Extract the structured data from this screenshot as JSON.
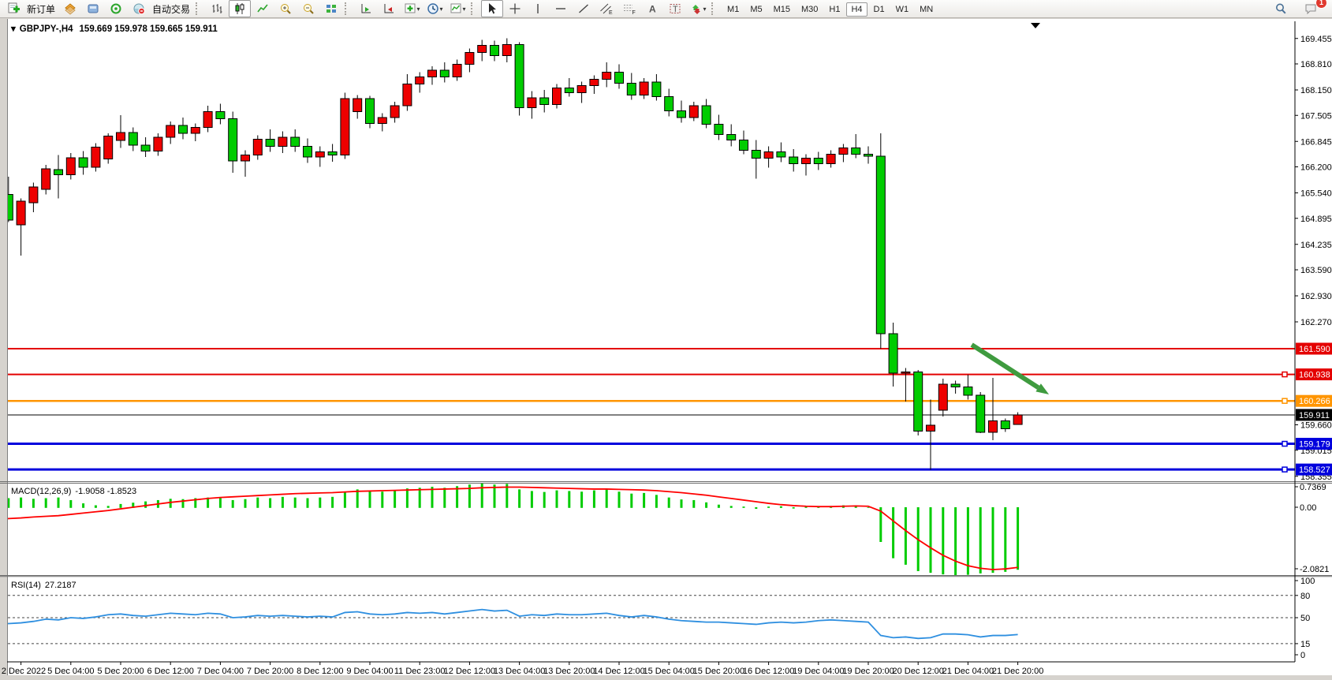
{
  "toolbar": {
    "new_order_label": "新订单",
    "auto_trading_label": "自动交易",
    "timeframes": [
      "M1",
      "M5",
      "M15",
      "M30",
      "H1",
      "H4",
      "D1",
      "W1",
      "MN"
    ],
    "active_timeframe": "H4",
    "notification_badge": "1"
  },
  "icons": {
    "dropdown_caret": "▾",
    "shift_marker": "▼"
  },
  "chart_header": {
    "symbol_title": "GBPJPY-,H4",
    "ohlc_line": "159.669 159.978 159.665 159.911"
  },
  "indicators": {
    "macd_label": "MACD(12,26,9)",
    "macd_values": "-1.9058 -1.8523",
    "rsi_label": "RSI(14)",
    "rsi_value": "27.2187"
  },
  "axes": {
    "price_ticks": [
      169.455,
      168.81,
      168.15,
      167.505,
      166.845,
      166.2,
      165.54,
      164.895,
      164.235,
      163.59,
      162.93,
      162.27,
      159.66,
      159.015,
      158.355
    ],
    "macd_ticks": [
      "0.7369",
      "0.00",
      "-2.0821"
    ],
    "rsi_ticks": [
      "100",
      "80",
      "50",
      "15",
      "0"
    ],
    "time_labels": [
      "2 Dec 2022",
      "5 Dec 04:00",
      "5 Dec 20:00",
      "6 Dec 12:00",
      "7 Dec 04:00",
      "7 Dec 20:00",
      "8 Dec 12:00",
      "9 Dec 04:00",
      "11 Dec 23:00",
      "12 Dec 12:00",
      "13 Dec 04:00",
      "13 Dec 20:00",
      "14 Dec 12:00",
      "15 Dec 04:00",
      "15 Dec 20:00",
      "16 Dec 12:00",
      "19 Dec 04:00",
      "19 Dec 20:00",
      "20 Dec 12:00",
      "21 Dec 04:00",
      "21 Dec 20:00"
    ]
  },
  "chart_data": {
    "type": "candlestick",
    "symbol": "GBPJPY-",
    "timeframe": "H4",
    "title": "GBPJPY-,H4 159.669 159.978 159.665 159.911",
    "bull_color": "#EE0000",
    "bear_color": "#00CC00",
    "candles": [
      [
        164.8,
        165.6,
        164.7,
        165.5
      ],
      [
        165.5,
        165.95,
        164.8,
        164.85
      ],
      [
        164.73,
        165.4,
        163.95,
        165.33
      ],
      [
        165.29,
        165.8,
        165.05,
        165.69
      ],
      [
        165.63,
        166.25,
        165.5,
        166.15
      ],
      [
        166.13,
        166.5,
        165.4,
        166.0
      ],
      [
        166.0,
        166.55,
        165.88,
        166.43
      ],
      [
        166.43,
        166.6,
        166.0,
        166.19
      ],
      [
        166.19,
        166.8,
        166.08,
        166.7
      ],
      [
        166.4,
        167.05,
        166.28,
        166.98
      ],
      [
        166.87,
        167.51,
        166.68,
        167.07
      ],
      [
        167.07,
        167.2,
        166.6,
        166.75
      ],
      [
        166.75,
        166.95,
        166.45,
        166.6
      ],
      [
        166.6,
        167.05,
        166.48,
        166.95
      ],
      [
        166.95,
        167.35,
        166.78,
        167.25
      ],
      [
        167.25,
        167.45,
        166.9,
        167.05
      ],
      [
        167.05,
        167.3,
        166.85,
        167.2
      ],
      [
        167.2,
        167.75,
        167.08,
        167.6
      ],
      [
        167.6,
        167.8,
        167.28,
        167.42
      ],
      [
        167.42,
        167.6,
        166.05,
        166.35
      ],
      [
        166.35,
        166.62,
        165.95,
        166.5
      ],
      [
        166.5,
        167.0,
        166.38,
        166.9
      ],
      [
        166.9,
        167.15,
        166.58,
        166.72
      ],
      [
        166.72,
        167.1,
        166.55,
        166.95
      ],
      [
        166.95,
        167.15,
        166.58,
        166.72
      ],
      [
        166.72,
        166.92,
        166.3,
        166.45
      ],
      [
        166.45,
        166.72,
        166.2,
        166.58
      ],
      [
        166.58,
        166.78,
        166.33,
        166.5
      ],
      [
        166.5,
        168.08,
        166.4,
        167.93
      ],
      [
        167.6,
        168.02,
        167.42,
        167.93
      ],
      [
        167.93,
        168.0,
        167.18,
        167.3
      ],
      [
        167.3,
        167.56,
        167.1,
        167.45
      ],
      [
        167.45,
        167.85,
        167.32,
        167.75
      ],
      [
        167.75,
        168.55,
        167.62,
        168.3
      ],
      [
        168.3,
        168.6,
        168.08,
        168.48
      ],
      [
        168.48,
        168.75,
        168.28,
        168.65
      ],
      [
        168.65,
        168.85,
        168.34,
        168.48
      ],
      [
        168.48,
        168.92,
        168.38,
        168.8
      ],
      [
        168.8,
        169.2,
        168.6,
        169.1
      ],
      [
        169.1,
        169.42,
        168.88,
        169.28
      ],
      [
        169.28,
        169.4,
        168.88,
        169.02
      ],
      [
        169.02,
        169.46,
        168.85,
        169.3
      ],
      [
        169.3,
        169.36,
        167.5,
        167.7
      ],
      [
        167.7,
        168.12,
        167.42,
        167.95
      ],
      [
        167.95,
        168.15,
        167.58,
        167.78
      ],
      [
        167.78,
        168.3,
        167.68,
        168.2
      ],
      [
        168.2,
        168.45,
        167.98,
        168.08
      ],
      [
        168.08,
        168.36,
        167.82,
        168.26
      ],
      [
        168.26,
        168.52,
        168.05,
        168.42
      ],
      [
        168.42,
        168.85,
        168.22,
        168.6
      ],
      [
        168.6,
        168.8,
        168.18,
        168.32
      ],
      [
        168.32,
        168.58,
        167.9,
        168.02
      ],
      [
        168.02,
        168.45,
        167.92,
        168.35
      ],
      [
        168.35,
        168.55,
        167.88,
        167.98
      ],
      [
        167.98,
        168.18,
        167.48,
        167.62
      ],
      [
        167.62,
        167.88,
        167.32,
        167.45
      ],
      [
        167.45,
        167.85,
        167.36,
        167.75
      ],
      [
        167.75,
        167.92,
        167.18,
        167.28
      ],
      [
        167.28,
        167.52,
        166.88,
        167.02
      ],
      [
        167.02,
        167.28,
        166.72,
        166.88
      ],
      [
        166.88,
        167.12,
        166.52,
        166.62
      ],
      [
        166.62,
        166.88,
        165.9,
        166.42
      ],
      [
        166.42,
        166.72,
        166.18,
        166.58
      ],
      [
        166.58,
        166.82,
        166.32,
        166.45
      ],
      [
        166.45,
        166.65,
        166.08,
        166.28
      ],
      [
        166.28,
        166.52,
        165.98,
        166.42
      ],
      [
        166.42,
        166.58,
        166.12,
        166.28
      ],
      [
        166.28,
        166.62,
        166.18,
        166.52
      ],
      [
        166.52,
        166.78,
        166.32,
        166.68
      ],
      [
        166.68,
        167.03,
        166.42,
        166.52
      ],
      [
        166.52,
        166.72,
        166.28,
        166.47
      ],
      [
        166.47,
        167.05,
        161.59,
        161.97
      ],
      [
        161.97,
        162.25,
        160.63,
        160.97
      ],
      [
        160.97,
        161.1,
        160.25,
        161.0
      ],
      [
        161.0,
        161.05,
        159.39,
        159.5
      ],
      [
        159.5,
        160.3,
        158.52,
        159.65
      ],
      [
        160.03,
        160.83,
        159.87,
        160.69
      ],
      [
        160.69,
        160.78,
        160.45,
        160.62
      ],
      [
        160.62,
        160.93,
        160.3,
        160.41
      ],
      [
        160.41,
        160.49,
        159.45,
        159.47
      ],
      [
        159.47,
        160.85,
        159.27,
        159.76
      ],
      [
        159.76,
        159.82,
        159.48,
        159.56
      ],
      [
        159.669,
        159.978,
        159.665,
        159.911
      ]
    ],
    "price_lines": [
      {
        "price": "161.590",
        "color": "#E40000",
        "width": 2,
        "handle": false
      },
      {
        "price": "160.938",
        "color": "#E40000",
        "width": 2,
        "handle": true
      },
      {
        "price": "160.266",
        "color": "#FF9500",
        "width": 2.5,
        "handle": true
      },
      {
        "price": "159.911",
        "color": "#000000",
        "width": 1,
        "handle": false
      },
      {
        "price": "159.179",
        "color": "#0000DD",
        "width": 3,
        "handle": true
      },
      {
        "price": "158.527",
        "color": "#0000DD",
        "width": 3,
        "handle": true
      }
    ],
    "annotation_arrow": {
      "from_bar": 78.3,
      "from_price": 161.69,
      "to_bar": 84.5,
      "to_price": 160.43,
      "color": "#3F9B3F"
    },
    "macd": {
      "params": "12,26,9",
      "main": -1.9058,
      "signal_now": -1.8523,
      "range": [
        -2.0821,
        0.7369
      ],
      "hist": [
        0.25,
        0.28,
        0.3,
        0.26,
        0.28,
        0.3,
        0.22,
        0.12,
        0.06,
        0.04,
        0.1,
        0.14,
        0.18,
        0.22,
        0.26,
        0.25,
        0.28,
        0.3,
        0.28,
        0.22,
        0.25,
        0.3,
        0.28,
        0.32,
        0.3,
        0.28,
        0.3,
        0.32,
        0.48,
        0.55,
        0.5,
        0.48,
        0.52,
        0.58,
        0.6,
        0.63,
        0.6,
        0.65,
        0.7,
        0.7369,
        0.7,
        0.72,
        0.55,
        0.5,
        0.47,
        0.52,
        0.5,
        0.48,
        0.52,
        0.55,
        0.48,
        0.42,
        0.44,
        0.38,
        0.3,
        0.24,
        0.22,
        0.15,
        0.08,
        0.04,
        0.02,
        -0.03,
        0.02,
        0.03,
        -0.02,
        0.02,
        0.01,
        0.04,
        0.06,
        0.05,
        0.0,
        -1.05,
        -1.55,
        -1.75,
        -1.95,
        -2.0,
        -2.05,
        -2.0821,
        -2.06,
        -2.02,
        -2.0,
        -1.97,
        -1.9058
      ],
      "signal": [
        -0.37,
        -0.35,
        -0.33,
        -0.3,
        -0.28,
        -0.26,
        -0.22,
        -0.18,
        -0.14,
        -0.1,
        -0.05,
        0.0,
        0.05,
        0.1,
        0.15,
        0.19,
        0.23,
        0.27,
        0.3,
        0.32,
        0.34,
        0.36,
        0.38,
        0.4,
        0.42,
        0.43,
        0.44,
        0.45,
        0.47,
        0.49,
        0.5,
        0.51,
        0.52,
        0.53,
        0.54,
        0.55,
        0.56,
        0.57,
        0.58,
        0.6,
        0.61,
        0.62,
        0.62,
        0.61,
        0.6,
        0.59,
        0.58,
        0.57,
        0.56,
        0.56,
        0.55,
        0.54,
        0.53,
        0.51,
        0.48,
        0.45,
        0.41,
        0.37,
        0.32,
        0.27,
        0.22,
        0.17,
        0.12,
        0.08,
        0.05,
        0.03,
        0.02,
        0.02,
        0.03,
        0.04,
        0.03,
        -0.12,
        -0.42,
        -0.72,
        -1.0,
        -1.25,
        -1.48,
        -1.66,
        -1.8,
        -1.88,
        -1.92,
        -1.9,
        -1.8523
      ]
    },
    "rsi": {
      "period": 14,
      "value_now": 27.2187,
      "levels": [
        80,
        50,
        15
      ],
      "range": [
        0,
        100
      ],
      "values": [
        44,
        42,
        43,
        45,
        48,
        47,
        50,
        49,
        51,
        54,
        55,
        53,
        52,
        54,
        56,
        55,
        54,
        56,
        55,
        50,
        51,
        53,
        52,
        53,
        52,
        51,
        52,
        51,
        57,
        58,
        55,
        54,
        55,
        57,
        56,
        57,
        55,
        57,
        59,
        61,
        59,
        60,
        52,
        54,
        53,
        55,
        54,
        54,
        55,
        56,
        53,
        51,
        53,
        51,
        48,
        46,
        45,
        44,
        44,
        43,
        42,
        41,
        43,
        44,
        43,
        44,
        46,
        47,
        46,
        45,
        44,
        26,
        23,
        24,
        22,
        23,
        28,
        28,
        27,
        24,
        26,
        26,
        27.2187
      ]
    }
  }
}
